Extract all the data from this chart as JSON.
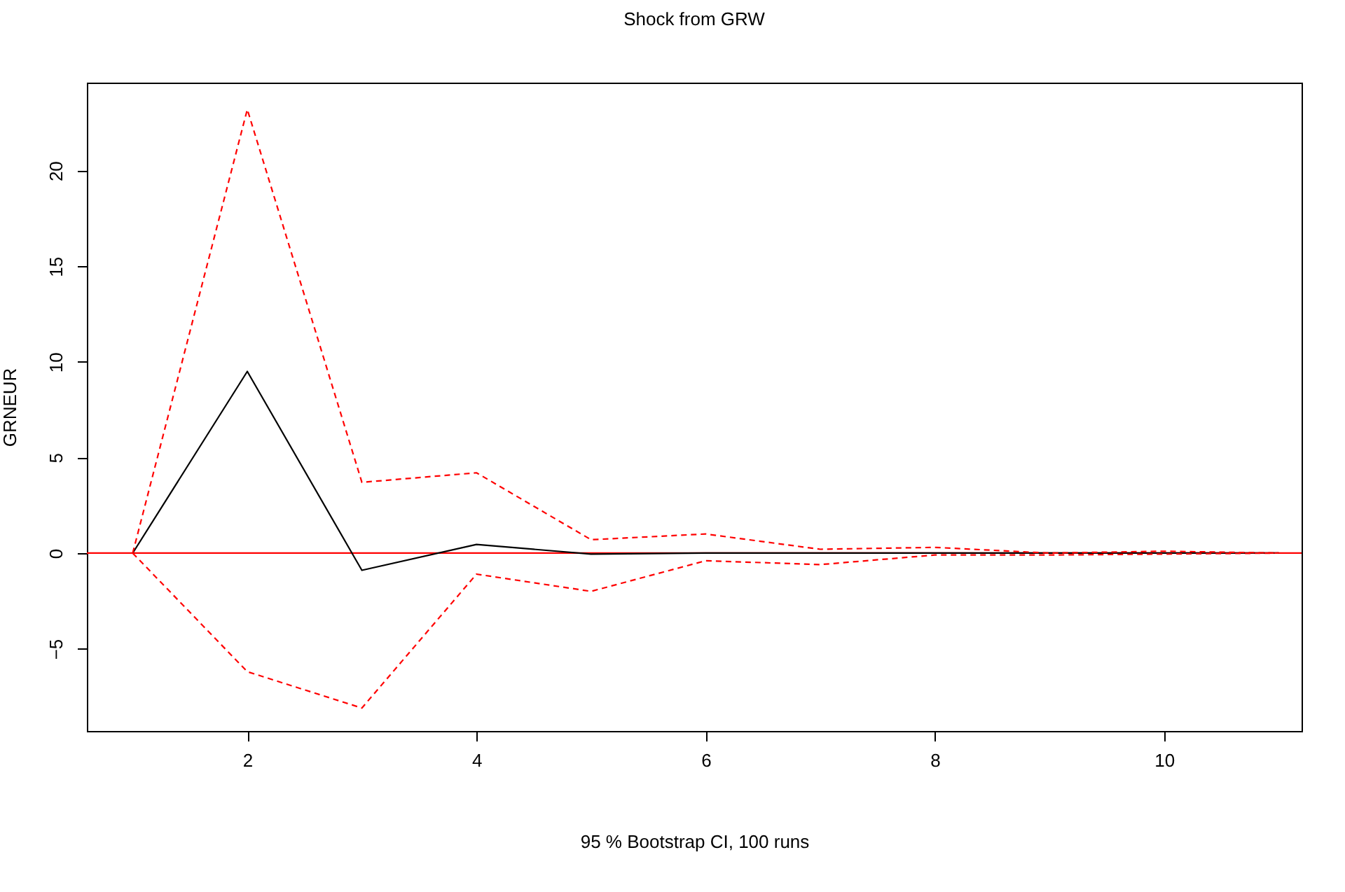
{
  "chart_data": {
    "type": "line",
    "title": "Shock from GRW",
    "xlabel": "95 % Bootstrap CI,  100 runs",
    "ylabel": "GRNEUR",
    "x": [
      1,
      2,
      3,
      4,
      5,
      6,
      7,
      8,
      9,
      10,
      11
    ],
    "series": [
      {
        "color": "#000000",
        "line_style": "solid",
        "values": [
          0,
          9.5,
          -0.9,
          0.45,
          -0.05,
          0,
          0,
          0,
          0,
          0,
          0
        ]
      },
      {
        "color": "#ff0000",
        "line_style": "dashed",
        "values": [
          0,
          23.2,
          3.7,
          4.2,
          0.7,
          1.0,
          0.2,
          0.3,
          0,
          0.1,
          0
        ]
      },
      {
        "color": "#ff0000",
        "line_style": "dashed",
        "values": [
          0,
          -6.2,
          -8.1,
          -1.1,
          -2.0,
          -0.4,
          -0.6,
          -0.1,
          -0.1,
          -0.05,
          0
        ]
      }
    ],
    "xlim": [
      0.6,
      11.2
    ],
    "ylim": [
      -9.3,
      24.6
    ],
    "xticks": [
      2,
      4,
      6,
      8,
      10
    ],
    "yticks": [
      -5,
      0,
      5,
      10,
      15,
      20
    ],
    "ref_lines": [
      {
        "axis": "y",
        "value": 0,
        "color": "#ff0000",
        "line_style": "solid"
      }
    ],
    "grid": false,
    "marker": "none"
  }
}
